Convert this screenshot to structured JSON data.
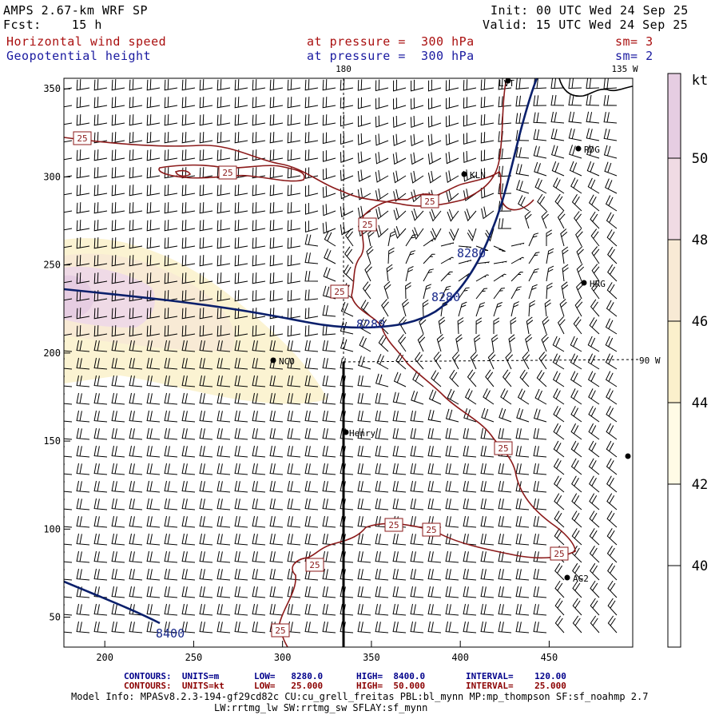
{
  "header": {
    "model": "AMPS 2.67-km WRF SP",
    "fcst": "Fcst:    15 h",
    "init": "Init: 00 UTC Wed 24 Sep 25",
    "valid": "Valid: 15 UTC Wed 24 Sep 25",
    "field1": "Horizontal wind speed",
    "field2": "Geopotential height",
    "level1": "at pressure =  300 hPa",
    "level2": "at pressure =  300 hPa",
    "sm1": "sm= 3",
    "sm2": "sm= 2"
  },
  "axes": {
    "x_ticks": [
      "200",
      "250",
      "300",
      "350",
      "400",
      "450"
    ],
    "y_ticks": [
      "350",
      "300",
      "250",
      "200",
      "150",
      "100",
      "50"
    ],
    "x_range": [
      177,
      497
    ],
    "y_range": [
      33,
      356
    ],
    "meridian_180": "180",
    "meridian_135w": "135 W",
    "meridian_90w": "90 W"
  },
  "colorbar": {
    "unit": "kt",
    "labels": [
      "50",
      "48",
      "46",
      "44",
      "42",
      "40"
    ],
    "colors": [
      "#ffffff",
      "#fff5d8",
      "#fbefc8",
      "#f8ead5",
      "#efd8e4",
      "#e6cde2"
    ]
  },
  "stations": [
    "LVT",
    "RDG",
    "KLN",
    "HRG",
    "NCO",
    "Henry",
    "AG2"
  ],
  "contour_labels": {
    "wind": "25",
    "height_8280": "8280",
    "height_8400": "8400"
  },
  "footer": {
    "line1_label": "CONTOURS:  UNITS=m",
    "line1_low": "LOW=   8280.0",
    "line1_high": "HIGH=  8400.0",
    "line1_int": "INTERVAL=    120.00",
    "line2_label": "CONTOURS:  UNITS=kt",
    "line2_low": "LOW=   25.000",
    "line2_high": "HIGH=  50.000",
    "line2_int": "INTERVAL=    25.000",
    "model_info": "Model Info: MPASv8.2.3-194-gf29cd82c CU:cu_grell_freitas PBL:bl_mynn MP:mp_thompson SF:sf_noahmp 2.7",
    "model_info2": "LW:rrtmg_lw SW:rrtmg_sw SFLAY:sf_mynn"
  }
}
